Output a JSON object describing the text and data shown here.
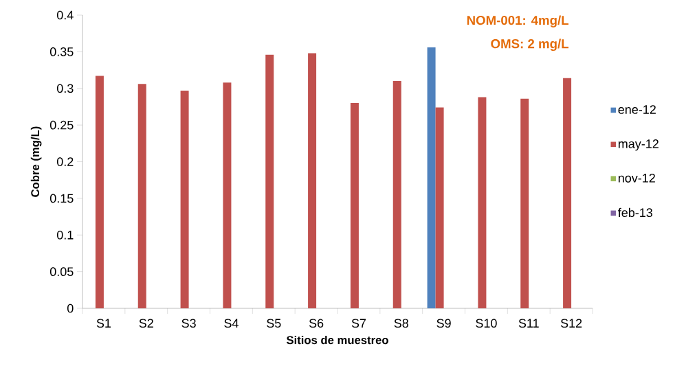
{
  "chart_data": {
    "type": "bar",
    "xlabel": "Sitios de muestreo",
    "ylabel": "Cobre (mg/L)",
    "annotations": [
      "NOM-001: 4mg/L",
      "OMS: 2 mg/L"
    ],
    "categories": [
      "S1",
      "S2",
      "S3",
      "S4",
      "S5",
      "S6",
      "S7",
      "S8",
      "S9",
      "S10",
      "S11",
      "S12"
    ],
    "series": [
      {
        "name": "ene-12",
        "color": "#4f81bd",
        "values": [
          null,
          null,
          null,
          null,
          null,
          null,
          null,
          null,
          0.356,
          null,
          null,
          null
        ]
      },
      {
        "name": "may-12",
        "color": "#c0504d",
        "values": [
          0.317,
          0.306,
          0.297,
          0.308,
          0.346,
          0.348,
          0.28,
          0.31,
          0.274,
          0.288,
          0.286,
          0.314
        ]
      },
      {
        "name": "nov-12",
        "color": "#9bbb59",
        "values": [
          null,
          null,
          null,
          null,
          null,
          null,
          null,
          null,
          null,
          null,
          null,
          null
        ]
      },
      {
        "name": "feb-13",
        "color": "#8064a2",
        "values": [
          null,
          null,
          null,
          null,
          null,
          null,
          null,
          null,
          null,
          null,
          null,
          null
        ]
      }
    ],
    "ylim": [
      0,
      0.4
    ],
    "yticks": [
      0,
      0.05,
      0.1,
      0.15,
      0.2,
      0.25,
      0.3,
      0.35,
      0.4
    ],
    "legend": "right"
  }
}
